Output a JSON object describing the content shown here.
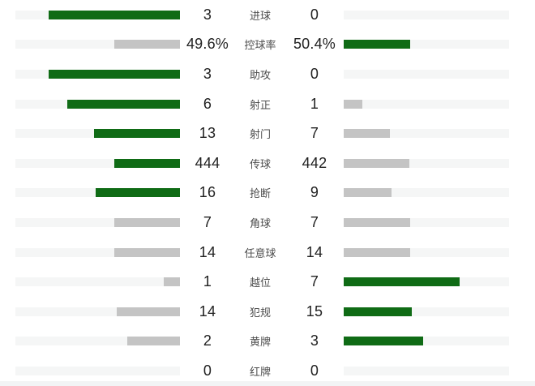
{
  "panel": {
    "title": "match-statistics-comparison"
  },
  "colors": {
    "bar_win_green": "#0f6b15",
    "bar_lose_gray": "#c4c4c4",
    "bar_track": "#f5f6f6",
    "value_text": "#212121",
    "label_text": "#4d4d4d",
    "bottom_strip": "#f2f4f5",
    "background": "#ffffff"
  },
  "rows": [
    {
      "label": "进球",
      "home": "3",
      "away": "0",
      "home_bar": {
        "pct": 80,
        "win": true
      },
      "away_bar": {
        "pct": 0,
        "win": false
      }
    },
    {
      "label": "控球率",
      "home": "49.6%",
      "away": "50.4%",
      "home_bar": {
        "pct": 39.7,
        "win": false
      },
      "away_bar": {
        "pct": 40.3,
        "win": true
      }
    },
    {
      "label": "助攻",
      "home": "3",
      "away": "0",
      "home_bar": {
        "pct": 80,
        "win": true
      },
      "away_bar": {
        "pct": 0,
        "win": false
      }
    },
    {
      "label": "射正",
      "home": "6",
      "away": "1",
      "home_bar": {
        "pct": 68.6,
        "win": true
      },
      "away_bar": {
        "pct": 11.4,
        "win": false
      }
    },
    {
      "label": "射门",
      "home": "13",
      "away": "7",
      "home_bar": {
        "pct": 52,
        "win": true
      },
      "away_bar": {
        "pct": 28,
        "win": false
      }
    },
    {
      "label": "传球",
      "home": "444",
      "away": "442",
      "home_bar": {
        "pct": 40.1,
        "win": true
      },
      "away_bar": {
        "pct": 39.9,
        "win": false
      }
    },
    {
      "label": "抢断",
      "home": "16",
      "away": "9",
      "home_bar": {
        "pct": 51.2,
        "win": true
      },
      "away_bar": {
        "pct": 28.8,
        "win": false
      }
    },
    {
      "label": "角球",
      "home": "7",
      "away": "7",
      "home_bar": {
        "pct": 40,
        "win": false
      },
      "away_bar": {
        "pct": 40,
        "win": false
      }
    },
    {
      "label": "任意球",
      "home": "14",
      "away": "14",
      "home_bar": {
        "pct": 40,
        "win": false
      },
      "away_bar": {
        "pct": 40,
        "win": false
      }
    },
    {
      "label": "越位",
      "home": "1",
      "away": "7",
      "home_bar": {
        "pct": 10,
        "win": false
      },
      "away_bar": {
        "pct": 70,
        "win": true
      }
    },
    {
      "label": "犯规",
      "home": "14",
      "away": "15",
      "home_bar": {
        "pct": 38.6,
        "win": false
      },
      "away_bar": {
        "pct": 41.4,
        "win": true
      }
    },
    {
      "label": "黄牌",
      "home": "2",
      "away": "3",
      "home_bar": {
        "pct": 32,
        "win": false
      },
      "away_bar": {
        "pct": 48,
        "win": true
      }
    },
    {
      "label": "红牌",
      "home": "0",
      "away": "0",
      "home_bar": {
        "pct": 0,
        "win": false
      },
      "away_bar": {
        "pct": 0,
        "win": false
      }
    }
  ],
  "chart_data": {
    "type": "bar",
    "orientation": "horizontal-paired",
    "title": "",
    "categories": [
      "进球",
      "控球率",
      "助攻",
      "射正",
      "射门",
      "传球",
      "抢断",
      "角球",
      "任意球",
      "越位",
      "犯规",
      "黄牌",
      "红牌"
    ],
    "series": [
      {
        "name": "home",
        "values": [
          3,
          49.6,
          3,
          6,
          13,
          444,
          16,
          7,
          14,
          1,
          14,
          2,
          0
        ]
      },
      {
        "name": "away",
        "values": [
          0,
          50.4,
          0,
          1,
          7,
          442,
          9,
          7,
          14,
          7,
          15,
          3,
          0
        ]
      }
    ],
    "bar_scale_rule": "fill_fraction = 0.8 * value / (home + away); zero when both are 0",
    "color_rule": "higher value side is green, lower or tied side is gray",
    "grid": false,
    "legend": false
  }
}
